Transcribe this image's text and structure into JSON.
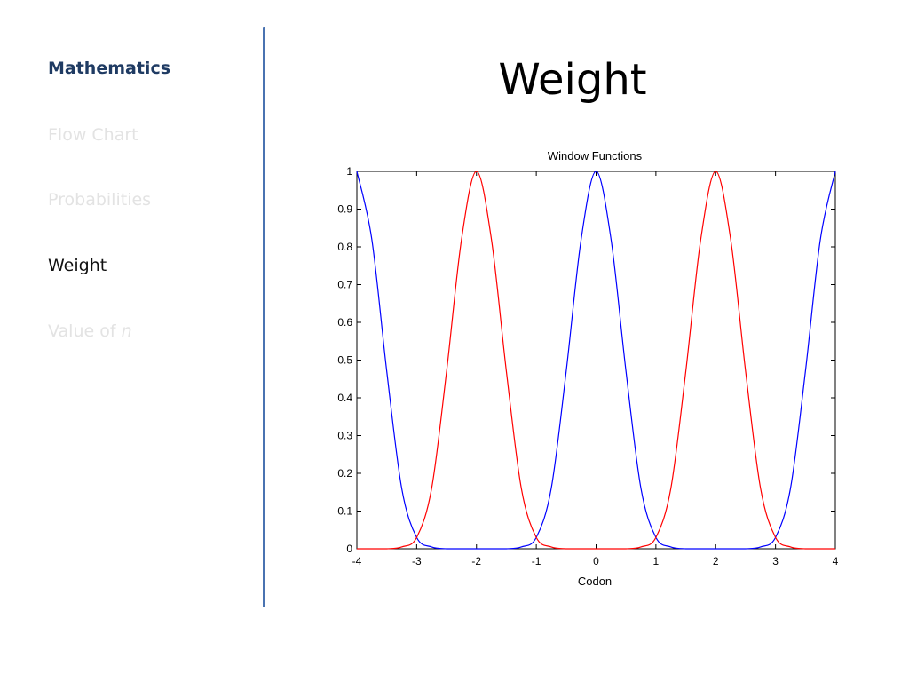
{
  "sidebar": {
    "items": [
      {
        "label": "Mathematics",
        "state": "section"
      },
      {
        "label": "Flow Chart",
        "state": "faded"
      },
      {
        "label": "Probabilities",
        "state": "faded"
      },
      {
        "label": "Weight",
        "state": "current"
      },
      {
        "label": "Value of ",
        "label_em": "n",
        "state": "faded"
      }
    ]
  },
  "main": {
    "title": "Weight"
  },
  "colors": {
    "sidebar_section": "#1f3b63",
    "sidebar_faded": "#e3e3e3",
    "divider": "#4a73b1",
    "series_blue": "#0000ff",
    "series_red": "#ff0000"
  },
  "chart_data": {
    "type": "line",
    "title": "Window Functions",
    "xlabel": "Codon",
    "ylabel": "",
    "xlim": [
      -4,
      4
    ],
    "ylim": [
      0,
      1
    ],
    "xticks": [
      "-4",
      "-3",
      "-2",
      "-1",
      "0",
      "1",
      "2",
      "3",
      "4"
    ],
    "yticks": [
      "0",
      "0.1",
      "0.2",
      "0.3",
      "0.4",
      "0.5",
      "0.6",
      "0.7",
      "0.8",
      "0.9",
      "1"
    ],
    "grid": false,
    "legend": "none",
    "series": [
      {
        "color": "#0000ff",
        "x": [
          -4,
          -3.75,
          -3.5,
          -3.25,
          -3,
          -2.75,
          -2.5,
          -2.25,
          -2,
          -1.75,
          -1.5,
          -1.25,
          -1,
          -0.75,
          -0.5,
          -0.25,
          0,
          0.25,
          0.5,
          0.75,
          1,
          1.25,
          1.5,
          1.75,
          2,
          2.25,
          2.5,
          2.75,
          3,
          3.25,
          3.5,
          3.75,
          4
        ],
        "y": [
          1,
          0.82,
          0.47,
          0.16,
          0.03,
          0.005,
          0,
          0,
          0,
          0,
          0,
          0.005,
          0.03,
          0.16,
          0.47,
          0.82,
          1,
          0.82,
          0.47,
          0.16,
          0.03,
          0.005,
          0,
          0,
          0,
          0,
          0,
          0.005,
          0.03,
          0.16,
          0.47,
          0.82,
          1
        ]
      },
      {
        "color": "#ff0000",
        "x": [
          -4,
          -3.75,
          -3.5,
          -3.25,
          -3,
          -2.75,
          -2.5,
          -2.25,
          -2,
          -1.75,
          -1.5,
          -1.25,
          -1,
          -0.75,
          -0.5,
          -0.25,
          0,
          0.25,
          0.5,
          0.75,
          1,
          1.25,
          1.5,
          1.75,
          2,
          2.25,
          2.5,
          2.75,
          3,
          3.25,
          3.5,
          3.75,
          4
        ],
        "y": [
          0,
          0,
          0,
          0.005,
          0.03,
          0.16,
          0.47,
          0.82,
          1,
          0.82,
          0.47,
          0.16,
          0.03,
          0.005,
          0,
          0,
          0,
          0,
          0,
          0.005,
          0.03,
          0.16,
          0.47,
          0.82,
          1,
          0.82,
          0.47,
          0.16,
          0.03,
          0.005,
          0,
          0,
          0
        ]
      }
    ]
  }
}
